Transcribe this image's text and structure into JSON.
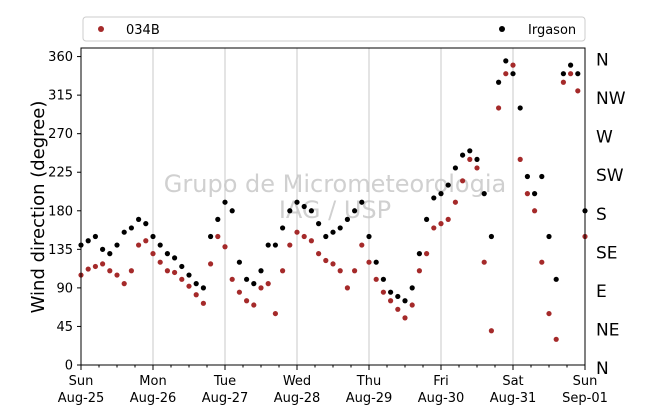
{
  "chart_data": {
    "type": "scatter",
    "ylabel": "Wind direction (degree)",
    "ylim": [
      0,
      370
    ],
    "yticks": [
      0,
      45,
      90,
      135,
      180,
      225,
      270,
      315,
      360
    ],
    "direction_labels": [
      {
        "value": 0,
        "label": "N"
      },
      {
        "value": 45,
        "label": "NE"
      },
      {
        "value": 90,
        "label": "E"
      },
      {
        "value": 135,
        "label": "SE"
      },
      {
        "value": 180,
        "label": "S"
      },
      {
        "value": 225,
        "label": "SW"
      },
      {
        "value": 270,
        "label": "W"
      },
      {
        "value": 315,
        "label": "NW"
      },
      {
        "value": 360,
        "label": "N"
      }
    ],
    "xlim": [
      0,
      7
    ],
    "x_unit": "days since Sun Aug-25 00:00",
    "xticks": [
      {
        "value": 0,
        "day": "Sun",
        "date": "Aug-25"
      },
      {
        "value": 1,
        "day": "Mon",
        "date": "Aug-26"
      },
      {
        "value": 2,
        "day": "Tue",
        "date": "Aug-27"
      },
      {
        "value": 3,
        "day": "Wed",
        "date": "Aug-28"
      },
      {
        "value": 4,
        "day": "Thu",
        "date": "Aug-29"
      },
      {
        "value": 5,
        "day": "Fri",
        "date": "Aug-30"
      },
      {
        "value": 6,
        "day": "Sat",
        "date": "Aug-31"
      },
      {
        "value": 7,
        "day": "Sun",
        "date": "Sep-01"
      }
    ],
    "grid": "vertical at day boundaries",
    "legend_position": "top",
    "watermark": [
      "Grupo de Micrometeorologia",
      "IAG / USP"
    ],
    "series": [
      {
        "name": "034B",
        "color": "#a52a2a",
        "x": [
          0.0,
          0.1,
          0.2,
          0.3,
          0.4,
          0.5,
          0.6,
          0.7,
          0.8,
          0.9,
          1.0,
          1.1,
          1.2,
          1.3,
          1.4,
          1.5,
          1.6,
          1.7,
          1.8,
          1.9,
          2.0,
          2.1,
          2.2,
          2.3,
          2.4,
          2.5,
          2.6,
          2.7,
          2.8,
          2.9,
          3.0,
          3.1,
          3.2,
          3.3,
          3.4,
          3.5,
          3.6,
          3.7,
          3.8,
          3.9,
          4.0,
          4.1,
          4.2,
          4.3,
          4.4,
          4.5,
          4.6,
          4.7,
          4.8,
          4.9,
          5.0,
          5.1,
          5.2,
          5.3,
          5.4,
          5.5,
          5.6,
          5.7,
          5.8,
          5.9,
          6.0,
          6.1,
          6.2,
          6.3,
          6.4,
          6.5,
          6.6,
          6.7,
          6.8,
          6.9,
          7.0
        ],
        "y": [
          105,
          112,
          115,
          118,
          110,
          105,
          95,
          110,
          140,
          145,
          130,
          120,
          110,
          108,
          100,
          92,
          82,
          72,
          118,
          150,
          138,
          100,
          85,
          75,
          70,
          90,
          95,
          60,
          110,
          140,
          155,
          150,
          145,
          130,
          122,
          118,
          110,
          90,
          110,
          140,
          120,
          100,
          85,
          75,
          65,
          55,
          70,
          110,
          130,
          160,
          165,
          170,
          190,
          215,
          240,
          230,
          120,
          40,
          300,
          340,
          350,
          240,
          200,
          180,
          120,
          60,
          30,
          330,
          340,
          320,
          150
        ]
      },
      {
        "name": "Irgason",
        "color": "#000000",
        "x": [
          0.0,
          0.1,
          0.2,
          0.3,
          0.4,
          0.5,
          0.6,
          0.7,
          0.8,
          0.9,
          1.0,
          1.1,
          1.2,
          1.3,
          1.4,
          1.5,
          1.6,
          1.7,
          1.8,
          1.9,
          2.0,
          2.1,
          2.2,
          2.3,
          2.4,
          2.5,
          2.6,
          2.7,
          2.8,
          2.9,
          3.0,
          3.1,
          3.2,
          3.3,
          3.4,
          3.5,
          3.6,
          3.7,
          3.8,
          3.9,
          4.0,
          4.1,
          4.2,
          4.3,
          4.4,
          4.5,
          4.6,
          4.7,
          4.8,
          4.9,
          5.0,
          5.1,
          5.2,
          5.3,
          5.4,
          5.5,
          5.6,
          5.7,
          5.8,
          5.9,
          6.0,
          6.1,
          6.2,
          6.3,
          6.4,
          6.5,
          6.6,
          6.7,
          6.8,
          6.9,
          7.0
        ],
        "y": [
          140,
          145,
          150,
          135,
          130,
          140,
          155,
          160,
          170,
          165,
          150,
          140,
          130,
          125,
          115,
          105,
          95,
          90,
          150,
          170,
          190,
          180,
          120,
          100,
          95,
          110,
          140,
          140,
          160,
          180,
          190,
          185,
          180,
          165,
          150,
          155,
          160,
          170,
          180,
          190,
          150,
          120,
          100,
          85,
          80,
          75,
          90,
          130,
          170,
          195,
          200,
          210,
          230,
          245,
          250,
          240,
          200,
          150,
          330,
          355,
          340,
          300,
          220,
          200,
          220,
          150,
          100,
          340,
          350,
          340,
          180
        ]
      }
    ]
  }
}
